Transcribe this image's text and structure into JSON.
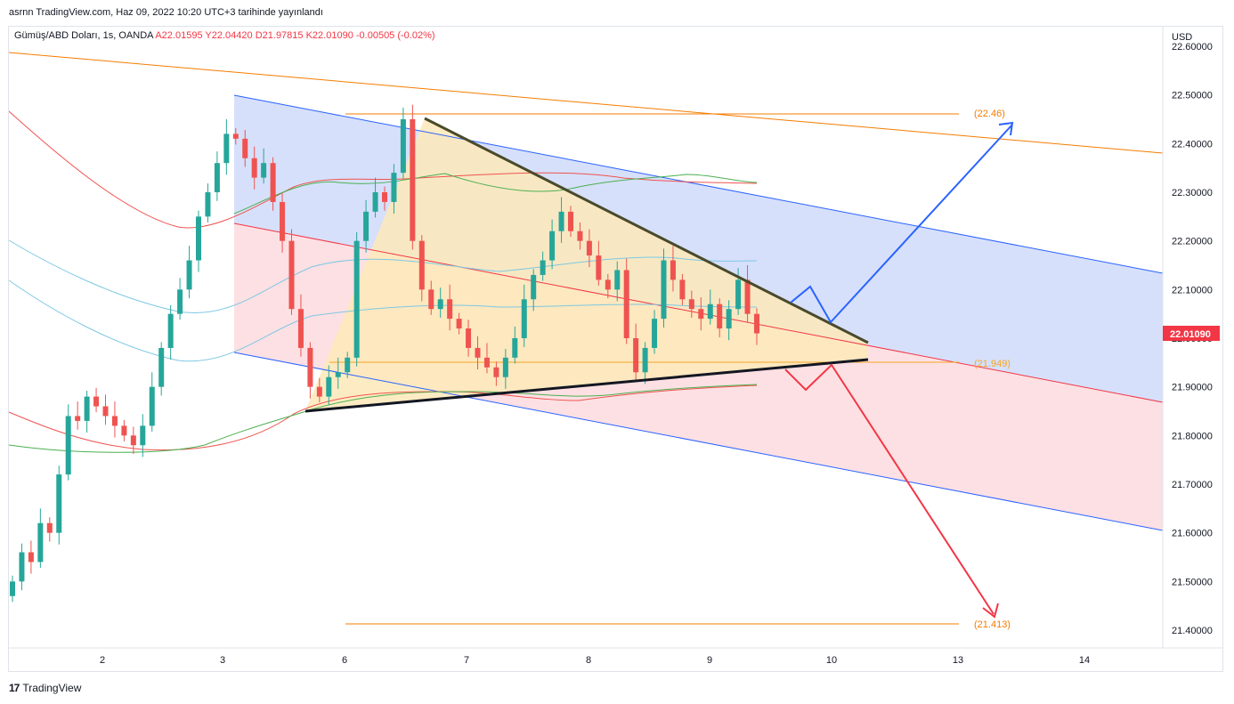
{
  "header": {
    "published": "asrnn TradingView.com, Haz 09, 2022 10:20 UTC+3 tarihinde yayınlandı",
    "symbol": "Gümüş/ABD Doları, 1s, OANDA",
    "open": "A22.01595",
    "high": "Y22.04420",
    "low": "D21.97815",
    "close": "K22.01090",
    "change": "-0.00505 (-0.02%)"
  },
  "footer": {
    "brand": "TradingView"
  },
  "chart_data": {
    "type": "candlestick",
    "currency": "USD",
    "last_price": "22.01090",
    "y_ticks": [
      "22.60000",
      "22.50000",
      "22.40000",
      "22.30000",
      "22.20000",
      "22.10000",
      "22.00000",
      "21.90000",
      "21.80000",
      "21.70000",
      "21.60000",
      "21.50000",
      "21.40000"
    ],
    "x_ticks": [
      "2",
      "3",
      "6",
      "7",
      "8",
      "9",
      "10",
      "13",
      "14"
    ],
    "ylim": [
      21.37,
      22.63
    ],
    "levels": [
      {
        "label": "(22.46)",
        "value": 22.46
      },
      {
        "label": "(21.949)",
        "value": 21.949
      },
      {
        "label": "(21.413)",
        "value": 21.413
      }
    ],
    "series_close": [
      21.5,
      21.56,
      21.54,
      21.62,
      21.6,
      21.72,
      21.84,
      21.83,
      21.88,
      21.86,
      21.84,
      21.82,
      21.8,
      21.78,
      21.82,
      21.9,
      21.98,
      22.05,
      22.1,
      22.16,
      22.25,
      22.3,
      22.36,
      22.42,
      22.41,
      22.37,
      22.33,
      22.36,
      22.28,
      22.2,
      22.06,
      21.98,
      21.9,
      21.88,
      21.92,
      21.93,
      21.96,
      22.2,
      22.26,
      22.3,
      22.28,
      22.34,
      22.45,
      22.2,
      22.1,
      22.06,
      22.08,
      22.04,
      22.02,
      21.98,
      21.96,
      21.94,
      21.92,
      21.96,
      22.0,
      22.08,
      22.13,
      22.16,
      22.22,
      22.26,
      22.22,
      22.2,
      22.17,
      22.12,
      22.1,
      22.14,
      22.0,
      21.93,
      21.98,
      22.04,
      22.16,
      22.12,
      22.08,
      22.06,
      22.04,
      22.07,
      22.02,
      22.06,
      22.12,
      22.05,
      22.01
    ]
  },
  "colors": {
    "bull": "#26a69a",
    "bear": "#ef5350",
    "channel_fill": "#d6e0fb",
    "lower_fill": "#fde0e3",
    "triangle_fill": "#fde9b8",
    "orange": "#f57c00",
    "blue_line": "#2962ff",
    "red_line": "#f23645"
  }
}
